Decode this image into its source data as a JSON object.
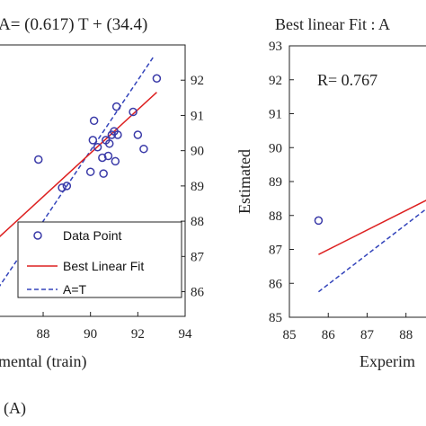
{
  "chart_data": [
    {
      "type": "scatter",
      "title": "A= (0.617) T + (34.4)",
      "xlabel": "mental (train)",
      "ylabel": "",
      "xlim": [
        86.1,
        94
      ],
      "ylim": [
        85.3,
        93.0
      ],
      "xticks": [
        "88",
        "90",
        "92",
        "94"
      ],
      "yticks": [
        "92",
        "91",
        "90",
        "89",
        "88",
        "87",
        "86"
      ],
      "legend_position": "bottom-right",
      "legend": [
        "Data Point",
        "Best Linear Fit",
        "A=T"
      ],
      "points": [
        [
          87.8,
          89.75
        ],
        [
          88.8,
          88.95
        ],
        [
          89.0,
          89.0
        ],
        [
          90.0,
          89.4
        ],
        [
          90.1,
          90.3
        ],
        [
          90.15,
          90.85
        ],
        [
          90.3,
          90.1
        ],
        [
          90.5,
          89.8
        ],
        [
          90.55,
          89.35
        ],
        [
          90.65,
          90.3
        ],
        [
          90.75,
          89.85
        ],
        [
          90.8,
          90.2
        ],
        [
          90.9,
          90.45
        ],
        [
          91.0,
          90.55
        ],
        [
          91.05,
          89.7
        ],
        [
          91.1,
          91.25
        ],
        [
          91.15,
          90.45
        ],
        [
          91.8,
          91.1
        ],
        [
          92.0,
          90.45
        ],
        [
          92.25,
          90.05
        ],
        [
          92.8,
          92.05
        ]
      ],
      "fit_line": {
        "slope": 0.617,
        "intercept": 34.4,
        "x_range": [
          86.1,
          92.8
        ]
      },
      "identity_line": {
        "x_range": [
          86.1,
          92.7
        ]
      },
      "colors": {
        "points": "#3a3aa8",
        "fit": "#dd2020",
        "identity": "#3344bb"
      }
    },
    {
      "type": "scatter",
      "title": "Best linear Fit : A",
      "xlabel": "Experim",
      "ylabel": "Estimated",
      "xlim": [
        85,
        88.7
      ],
      "ylim": [
        85,
        93
      ],
      "xticks": [
        "85",
        "86",
        "87",
        "88"
      ],
      "yticks": [
        "93",
        "92",
        "91",
        "90",
        "89",
        "88",
        "87",
        "86",
        "85"
      ],
      "annotation": "R= 0.767",
      "points": [
        [
          85.75,
          87.85
        ]
      ],
      "fit_line": {
        "x_range": [
          85.75,
          88.7
        ],
        "y_range": [
          86.85,
          88.55
        ]
      },
      "identity_line": {
        "x_range": [
          85.75,
          88.7
        ],
        "y_range": [
          85.75,
          88.35
        ]
      },
      "colors": {
        "points": "#3a3aa8",
        "fit": "#dd2020",
        "identity": "#3344bb"
      }
    }
  ],
  "caption": "(A)"
}
